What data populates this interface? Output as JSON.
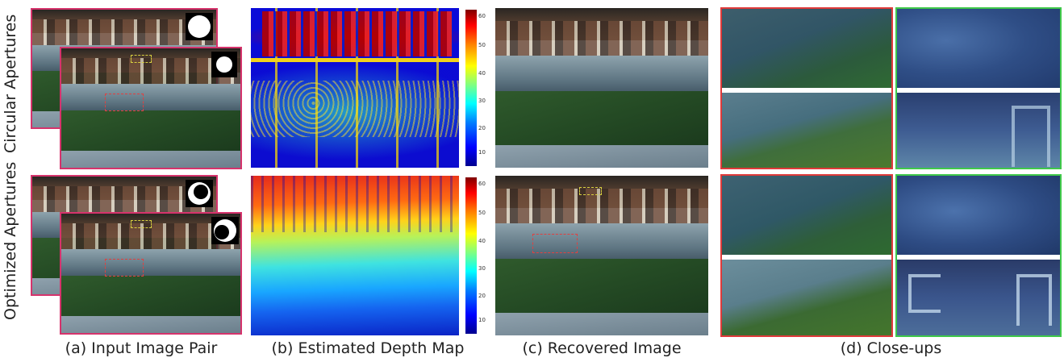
{
  "rows": [
    {
      "label": "Circular Apertures"
    },
    {
      "label": "Optimized Apertures"
    }
  ],
  "captions": {
    "a": "(a) Input Image Pair",
    "b": "(b) Estimated Depth Map",
    "c": "(c) Recovered Image",
    "d": "(d) Close-ups"
  },
  "colorbar_ticks": [
    "60",
    "50",
    "40",
    "30",
    "20",
    "10"
  ],
  "colors": {
    "input_frame": "#d6336c",
    "closeup_left_frame": "#e03a3a",
    "closeup_right_frame": "#3fc84a"
  }
}
